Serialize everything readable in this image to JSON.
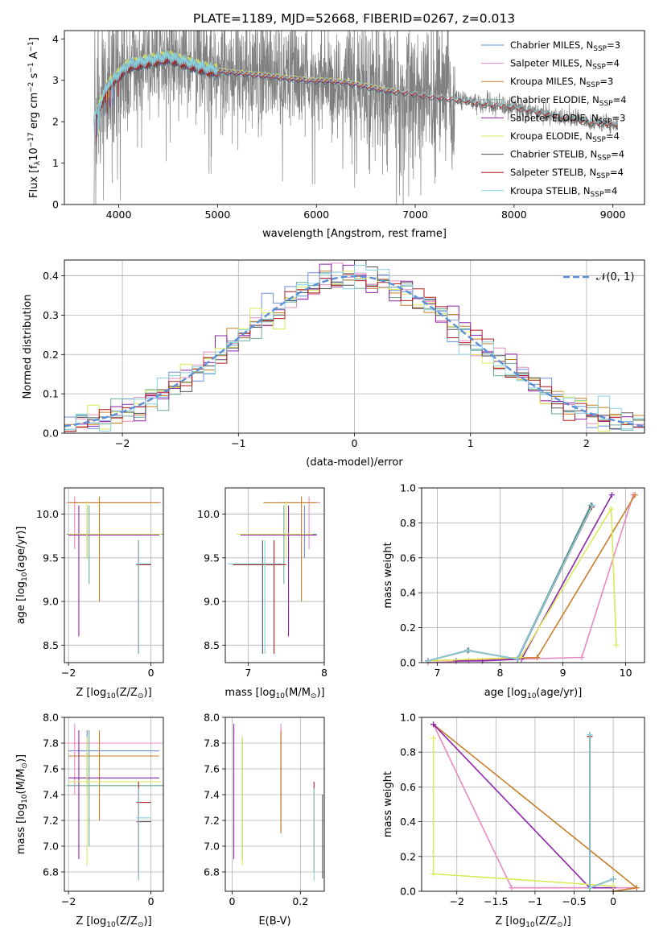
{
  "figure_title": "PLATE=1189, MJD=52668, FIBERID=0267, z=0.013",
  "colors": {
    "data": "#808080",
    "Chabrier MILES": "#6a8fdb",
    "Salpeter MILES": "#e88ac0",
    "Kroupa MILES": "#c87f2a",
    "Chabrier ELODIE": "#6aa89a",
    "Salpeter ELODIE": "#8e24aa",
    "Kroupa ELODIE": "#d9ea5a",
    "Chabrier STELIB": "#555555",
    "Salpeter STELIB": "#b01c1c",
    "Kroupa STELIB": "#86d2e0",
    "normal_curve": "#5b8fd6"
  },
  "chart_data": [
    {
      "id": "spectrum",
      "type": "line",
      "title": "PLATE=1189, MJD=52668, FIBERID=0267, z=0.013",
      "xlabel": "wavelength [Angstrom, rest frame]",
      "ylabel_parts": [
        "Flux [f",
        "λ",
        "10",
        "−17",
        " erg cm",
        "−2",
        " s",
        "−1",
        " A",
        "−1",
        "]"
      ],
      "xlim": [
        3450,
        9320
      ],
      "ylim": [
        0,
        4.2
      ],
      "xticks": [
        4000,
        5000,
        6000,
        7000,
        8000,
        9000
      ],
      "yticks": [
        0,
        1,
        2,
        3,
        4
      ],
      "grid": false,
      "legend_position": "top-right",
      "legend": [
        {
          "label": "Chabrier MILES, N",
          "sub": "SSP",
          "suffix": "=3"
        },
        {
          "label": "Salpeter MILES, N",
          "sub": "SSP",
          "suffix": "=4"
        },
        {
          "label": "Kroupa MILES, N",
          "sub": "SSP",
          "suffix": "=3"
        },
        {
          "label": "Chabrier ELODIE, N",
          "sub": "SSP",
          "suffix": "=4"
        },
        {
          "label": "Salpeter ELODIE, N",
          "sub": "SSP",
          "suffix": "=3"
        },
        {
          "label": "Kroupa ELODIE, N",
          "sub": "SSP",
          "suffix": "=4"
        },
        {
          "label": "Chabrier STELIB, N",
          "sub": "SSP",
          "suffix": "=4"
        },
        {
          "label": "Salpeter STELIB, N",
          "sub": "SSP",
          "suffix": "=4"
        },
        {
          "label": "Kroupa STELIB, N",
          "sub": "SSP",
          "suffix": "=4"
        }
      ],
      "continuum": {
        "wavelength": [
          3750,
          3900,
          4100,
          4300,
          4500,
          4700,
          4900,
          5100,
          5300,
          5500,
          5700,
          5900,
          6100,
          6300,
          6500,
          6700,
          6900,
          7100,
          7300,
          7500,
          7700,
          7900,
          8100,
          8300,
          8500,
          8700,
          8900,
          9050
        ],
        "flux": [
          2.05,
          2.9,
          3.35,
          3.45,
          3.55,
          3.4,
          3.25,
          3.2,
          3.15,
          3.1,
          3.05,
          3.0,
          2.98,
          2.95,
          2.85,
          2.75,
          2.7,
          2.62,
          2.57,
          2.5,
          2.42,
          2.38,
          2.3,
          2.2,
          2.1,
          2.0,
          1.95,
          1.92
        ]
      },
      "data_wavelength_range": [
        3750,
        9050
      ],
      "model_wavelength_ranges": {
        "MILES": [
          3750,
          7430
        ],
        "ELODIE": [
          3750,
          6810
        ],
        "STELIB": [
          3750,
          9050
        ]
      }
    },
    {
      "id": "residuals",
      "type": "bar",
      "xlabel": "(data-model)/error",
      "ylabel": "Normed distribution",
      "xlim": [
        -2.5,
        2.5
      ],
      "ylim": [
        0,
        0.44
      ],
      "xticks": [
        -2,
        -1,
        0,
        1,
        2
      ],
      "yticks": [
        0.0,
        0.1,
        0.2,
        0.3,
        0.4
      ],
      "grid": true,
      "legend_position": "top-right",
      "legend": [
        {
          "label": "𝒩(0, 1)",
          "style": "dashed"
        }
      ],
      "bin_width": 0.1
    },
    {
      "id": "age_vs_Z",
      "type": "scatter",
      "xlabel_parts": [
        "Z [log",
        "10",
        "(Z/Z",
        "⊙",
        ")]"
      ],
      "ylabel_parts": [
        "age  [log",
        "10",
        "(age/yr)]"
      ],
      "xlim": [
        -2.1,
        0.3
      ],
      "ylim": [
        8.3,
        10.3
      ],
      "xticks": [
        -2,
        0
      ],
      "yticks": [
        8.5,
        9.0,
        9.5,
        10.0
      ],
      "grid": true
    },
    {
      "id": "age_vs_mass",
      "type": "scatter",
      "xlabel_parts": [
        "mass [log",
        "10",
        "(M/M",
        "⊙",
        ")]"
      ],
      "xlim": [
        6.7,
        8.0
      ],
      "ylim": [
        8.3,
        10.3
      ],
      "xticks": [
        7,
        8
      ],
      "yticks": [
        8.5,
        9.0,
        9.5,
        10.0
      ],
      "grid": true
    },
    {
      "id": "massweight_vs_age",
      "type": "line",
      "xlabel_parts": [
        "age  [log",
        "10",
        "(age/yr)]"
      ],
      "ylabel": "mass weight",
      "xlim": [
        6.75,
        10.3
      ],
      "ylim": [
        0,
        1.0
      ],
      "xticks": [
        7,
        8,
        9,
        10
      ],
      "yticks": [
        0.0,
        0.2,
        0.4,
        0.6,
        0.8,
        1.0
      ],
      "grid": true,
      "series": [
        {
          "model": "Chabrier MILES",
          "x": [
            6.85,
            7.48,
            8.28,
            9.47
          ],
          "y": [
            0.01,
            0.07,
            0.02,
            0.9
          ]
        },
        {
          "model": "Salpeter MILES",
          "x": [
            6.85,
            7.5,
            8.28,
            9.3,
            10.12
          ],
          "y": [
            0.0,
            0.01,
            0.02,
            0.03,
            0.96
          ]
        },
        {
          "model": "Kroupa MILES",
          "x": [
            6.85,
            8.59,
            10.15
          ],
          "y": [
            0.01,
            0.03,
            0.96
          ]
        },
        {
          "model": "Chabrier ELODIE",
          "x": [
            6.85,
            7.48,
            8.27,
            9.44
          ],
          "y": [
            0.01,
            0.07,
            0.02,
            0.9
          ]
        },
        {
          "model": "Salpeter ELODIE",
          "x": [
            7.3,
            7.72,
            8.34,
            9.78
          ],
          "y": [
            0.01,
            0.01,
            0.02,
            0.96
          ]
        },
        {
          "model": "Kroupa ELODIE",
          "x": [
            6.85,
            8.33,
            9.77,
            9.85
          ],
          "y": [
            0.01,
            0.03,
            0.88,
            0.1
          ]
        },
        {
          "model": "Chabrier STELIB",
          "x": [
            6.85,
            7.5,
            8.27,
            9.46
          ],
          "y": [
            0.01,
            0.07,
            0.02,
            0.9
          ]
        },
        {
          "model": "Salpeter STELIB",
          "x": [
            6.85,
            7.49,
            8.27,
            9.46
          ],
          "y": [
            0.01,
            0.07,
            0.02,
            0.89
          ]
        },
        {
          "model": "Kroupa STELIB",
          "x": [
            6.85,
            7.49,
            8.27,
            9.47
          ],
          "y": [
            0.01,
            0.07,
            0.02,
            0.9
          ]
        }
      ]
    },
    {
      "id": "mass_vs_Z",
      "type": "scatter",
      "xlabel_parts": [
        "Z [log",
        "10",
        "(Z/Z",
        "⊙",
        ")]"
      ],
      "ylabel_parts": [
        "mass [log",
        "10",
        "(M/M",
        "⊙",
        ")]"
      ],
      "xlim": [
        -2.1,
        0.3
      ],
      "ylim": [
        6.65,
        8.0
      ],
      "xticks": [
        -2,
        0
      ],
      "yticks": [
        6.8,
        7.0,
        7.2,
        7.4,
        7.6,
        7.8,
        8.0
      ],
      "grid": true
    },
    {
      "id": "mass_vs_EBV",
      "type": "scatter",
      "xlabel": "E(B-V)",
      "xlim": [
        -0.02,
        0.27
      ],
      "ylim": [
        6.65,
        8.0
      ],
      "xticks": [
        0.0,
        0.2
      ],
      "yticks": [
        6.8,
        7.0,
        7.2,
        7.4,
        7.6,
        7.8,
        8.0
      ],
      "grid": true
    },
    {
      "id": "massweight_vs_Z",
      "type": "line",
      "xlabel_parts": [
        "Z [log",
        "10",
        "(Z/Z",
        "⊙",
        ")]"
      ],
      "ylabel": "mass weight",
      "xlim": [
        -2.45,
        0.4
      ],
      "ylim": [
        0,
        1.0
      ],
      "xticks": [
        -2.0,
        -1.5,
        -1.0,
        -0.5,
        0.0
      ],
      "yticks": [
        0.0,
        0.2,
        0.4,
        0.6,
        0.8,
        1.0
      ],
      "grid": true,
      "series": [
        {
          "model": "Chabrier MILES",
          "x": [
            -0.3,
            -0.3,
            0.0
          ],
          "y": [
            0.9,
            0.02,
            0.07
          ]
        },
        {
          "model": "Salpeter MILES",
          "x": [
            -2.3,
            -1.3,
            0.3
          ],
          "y": [
            0.96,
            0.02,
            0.02
          ]
        },
        {
          "model": "Kroupa MILES",
          "x": [
            -2.3,
            0.3,
            0.0
          ],
          "y": [
            0.96,
            0.02,
            0.0
          ]
        },
        {
          "model": "Chabrier ELODIE",
          "x": [
            -0.3,
            -0.3,
            0.0
          ],
          "y": [
            0.9,
            0.02,
            0.07
          ]
        },
        {
          "model": "Salpeter ELODIE",
          "x": [
            -2.3,
            -0.3,
            0.0
          ],
          "y": [
            0.96,
            0.02,
            0.02
          ]
        },
        {
          "model": "Kroupa ELODIE",
          "x": [
            -2.3,
            -2.3,
            0.0
          ],
          "y": [
            0.88,
            0.1,
            0.03
          ]
        },
        {
          "model": "Chabrier STELIB",
          "x": [
            -0.3,
            -0.3,
            0.0
          ],
          "y": [
            0.9,
            0.02,
            0.07
          ]
        },
        {
          "model": "Salpeter STELIB",
          "x": [
            -0.3,
            -0.3,
            0.0
          ],
          "y": [
            0.89,
            0.02,
            0.07
          ]
        },
        {
          "model": "Kroupa STELIB",
          "x": [
            -0.3,
            -0.3,
            0.0
          ],
          "y": [
            0.9,
            0.02,
            0.07
          ]
        }
      ]
    }
  ],
  "error_bars": {
    "Chabrier MILES": {
      "Z": -1.55,
      "Zerr": [
        -2.0,
        0.2
      ],
      "age": 9.77,
      "ageErr": [
        9.5,
        10.1
      ],
      "mass": 7.74,
      "massErr": [
        7.4,
        7.9
      ],
      "ebv": 0.143,
      "massEbvErr": [
        7.1,
        7.9
      ]
    },
    "Salpeter MILES": {
      "Z": -1.85,
      "Zerr": [
        -2.05,
        0.25
      ],
      "age": 10.13,
      "ageErr": [
        9.6,
        10.2
      ],
      "mass": 7.8,
      "massErr": [
        7.4,
        7.95
      ],
      "ebv": 0.143,
      "massEbvErr": [
        7.3,
        7.95
      ]
    },
    "Kroupa MILES": {
      "Z": -1.25,
      "Zerr": [
        -2.0,
        0.2
      ],
      "age": 10.13,
      "ageErr": [
        9.0,
        10.2
      ],
      "mass": 7.7,
      "massErr": [
        7.2,
        7.9
      ],
      "ebv": 0.143,
      "massEbvErr": [
        7.1,
        7.9
      ]
    },
    "Chabrier ELODIE": {
      "Z": -1.5,
      "Zerr": [
        -2.05,
        0.3
      ],
      "age": 9.77,
      "ageErr": [
        9.2,
        10.1
      ],
      "mass": 7.47,
      "massErr": [
        7.0,
        7.9
      ],
      "ebv": 0.03,
      "massEbvErr": [
        6.9,
        7.85
      ]
    },
    "Salpeter ELODIE": {
      "Z": -1.75,
      "Zerr": [
        -2.0,
        0.2
      ],
      "age": 9.76,
      "ageErr": [
        8.6,
        10.1
      ],
      "mass": 7.53,
      "massErr": [
        6.9,
        7.9
      ],
      "ebv": 0.005,
      "massEbvErr": [
        6.9,
        7.95
      ]
    },
    "Kroupa ELODIE": {
      "Z": -1.55,
      "Zerr": [
        -2.0,
        0.25
      ],
      "age": 9.77,
      "ageErr": [
        9.5,
        10.15
      ],
      "mass": 7.5,
      "massErr": [
        6.85,
        7.85
      ],
      "ebv": 0.03,
      "massEbvErr": [
        6.85,
        7.85
      ]
    },
    "Chabrier STELIB": {
      "Z": -0.3,
      "Zerr": [
        -0.35,
        -0.0
      ],
      "age": 9.43,
      "ageErr": [
        8.4,
        9.7
      ],
      "mass": 7.19,
      "massErr": [
        6.75,
        7.45
      ],
      "ebv": 0.265,
      "massEbvErr": [
        6.75,
        7.4
      ]
    },
    "Salpeter STELIB": {
      "Z": -0.3,
      "Zerr": [
        -0.35,
        -0.0
      ],
      "age": 9.42,
      "ageErr": [
        8.4,
        9.7
      ],
      "mass": 7.34,
      "massErr": [
        6.8,
        7.5
      ],
      "ebv": 0.24,
      "massEbvErr": [
        6.8,
        7.5
      ]
    },
    "Kroupa STELIB": {
      "Z": -0.3,
      "Zerr": [
        -0.35,
        0.0
      ],
      "age": 9.43,
      "ageErr": [
        8.4,
        9.7
      ],
      "mass": 7.22,
      "massErr": [
        6.73,
        7.45
      ],
      "ebv": 0.24,
      "massEbvErr": [
        6.73,
        7.45
      ]
    }
  }
}
